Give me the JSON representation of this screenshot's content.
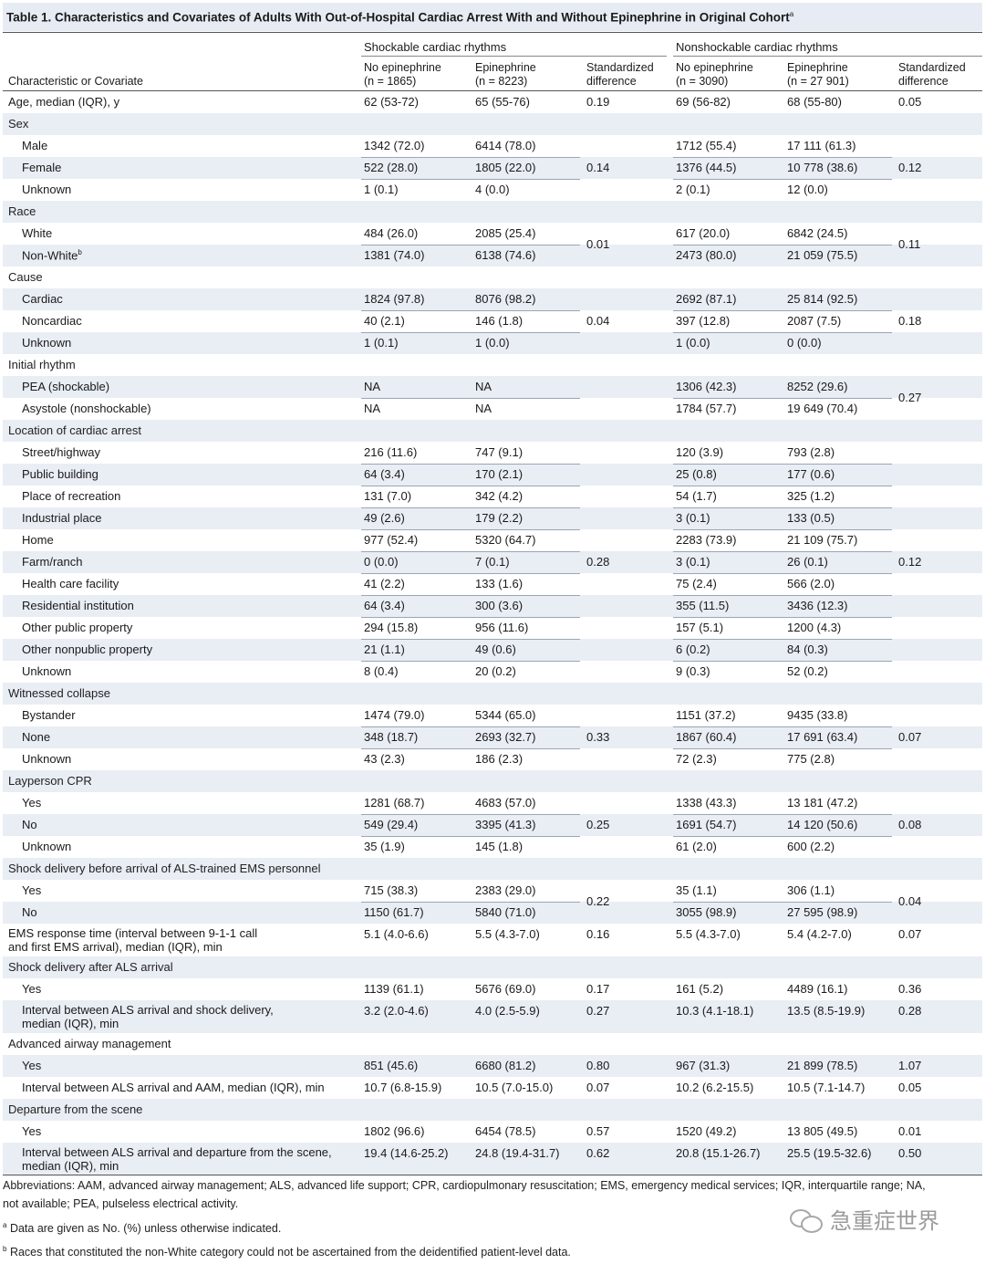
{
  "title": "Table 1. Characteristics and Covariates of Adults With Out-of-Hospital Cardiac Arrest With and Without Epinephrine in Original Cohort",
  "title_sup": "a",
  "header": {
    "group1": "Shockable cardiac rhythms",
    "group2": "Nonshockable cardiac rhythms",
    "characteristic": "Characteristic or Covariate",
    "cols": [
      [
        "No epinephrine",
        "(n = 1865)"
      ],
      [
        "Epinephrine",
        "(n = 8223)"
      ],
      [
        "Standardized",
        "difference"
      ],
      [
        "No epinephrine",
        "(n = 3090)"
      ],
      [
        "Epinephrine",
        "(n = 27 901)"
      ],
      [
        "Standardized",
        "difference"
      ]
    ]
  },
  "rows": [
    {
      "label": "Age, median (IQR), y",
      "s1": "62 (53-72)",
      "s2": "65 (55-76)",
      "sd1": "0.19",
      "n1": "69 (56-82)",
      "n2": "68 (55-80)",
      "sd2": "0.05"
    },
    {
      "label": "Sex",
      "section": true
    },
    {
      "label": "Male",
      "sub": true,
      "s1": "1342 (72.0)",
      "s2": "6414 (78.0)",
      "n1": "1712 (55.4)",
      "n2": "17 111 (61.3)"
    },
    {
      "label": "Female",
      "sub": true,
      "s1": "522 (28.0)",
      "s2": "1805 (22.0)",
      "n1": "1376 (44.5)",
      "n2": "10 778 (38.6)"
    },
    {
      "label": "Unknown",
      "sub": true,
      "s1": "1 (0.1)",
      "s2": "4 (0.0)",
      "n1": "2 (0.1)",
      "n2": "12 (0.0)"
    },
    {
      "label": "Race",
      "section": true
    },
    {
      "label": "White",
      "sub": true,
      "s1": "484 (26.0)",
      "s2": "2085 (25.4)",
      "n1": "617 (20.0)",
      "n2": "6842 (24.5)"
    },
    {
      "label": "Non-White",
      "label_sup": "b",
      "sub": true,
      "s1": "1381 (74.0)",
      "s2": "6138 (74.6)",
      "n1": "2473 (80.0)",
      "n2": "21 059 (75.5)"
    },
    {
      "label": "Cause",
      "section": true
    },
    {
      "label": "Cardiac",
      "sub": true,
      "s1": "1824 (97.8)",
      "s2": "8076 (98.2)",
      "n1": "2692 (87.1)",
      "n2": "25 814 (92.5)"
    },
    {
      "label": "Noncardiac",
      "sub": true,
      "s1": "40 (2.1)",
      "s2": "146 (1.8)",
      "n1": "397 (12.8)",
      "n2": "2087 (7.5)"
    },
    {
      "label": "Unknown",
      "sub": true,
      "s1": "1 (0.1)",
      "s2": "1 (0.0)",
      "n1": "1 (0.0)",
      "n2": "0 (0.0)"
    },
    {
      "label": "Initial rhythm",
      "section": true
    },
    {
      "label": "PEA (shockable)",
      "sub": true,
      "s1": "NA",
      "s2": "NA",
      "n1": "1306 (42.3)",
      "n2": "8252 (29.6)"
    },
    {
      "label": "Asystole (nonshockable)",
      "sub": true,
      "s1": "NA",
      "s2": "NA",
      "n1": "1784 (57.7)",
      "n2": "19 649 (70.4)"
    },
    {
      "label": "Location of cardiac arrest",
      "section": true
    },
    {
      "label": "Street/highway",
      "sub": true,
      "s1": "216 (11.6)",
      "s2": "747 (9.1)",
      "n1": "120 (3.9)",
      "n2": "793 (2.8)"
    },
    {
      "label": "Public building",
      "sub": true,
      "s1": "64 (3.4)",
      "s2": "170 (2.1)",
      "n1": "25 (0.8)",
      "n2": "177 (0.6)"
    },
    {
      "label": "Place of recreation",
      "sub": true,
      "s1": "131 (7.0)",
      "s2": "342 (4.2)",
      "n1": "54 (1.7)",
      "n2": "325 (1.2)"
    },
    {
      "label": "Industrial place",
      "sub": true,
      "s1": "49 (2.6)",
      "s2": "179 (2.2)",
      "n1": "3 (0.1)",
      "n2": "133 (0.5)"
    },
    {
      "label": "Home",
      "sub": true,
      "s1": "977 (52.4)",
      "s2": "5320 (64.7)",
      "n1": "2283 (73.9)",
      "n2": "21 109 (75.7)"
    },
    {
      "label": "Farm/ranch",
      "sub": true,
      "s1": "0 (0.0)",
      "s2": "7 (0.1)",
      "n1": "3 (0.1)",
      "n2": "26 (0.1)"
    },
    {
      "label": "Health care facility",
      "sub": true,
      "s1": "41 (2.2)",
      "s2": "133 (1.6)",
      "n1": "75 (2.4)",
      "n2": "566 (2.0)"
    },
    {
      "label": "Residential institution",
      "sub": true,
      "s1": "64 (3.4)",
      "s2": "300 (3.6)",
      "n1": "355 (11.5)",
      "n2": "3436 (12.3)"
    },
    {
      "label": "Other public property",
      "sub": true,
      "s1": "294 (15.8)",
      "s2": "956 (11.6)",
      "n1": "157 (5.1)",
      "n2": "1200 (4.3)"
    },
    {
      "label": "Other nonpublic property",
      "sub": true,
      "s1": "21 (1.1)",
      "s2": "49 (0.6)",
      "n1": "6 (0.2)",
      "n2": "84 (0.3)"
    },
    {
      "label": "Unknown",
      "sub": true,
      "s1": "8 (0.4)",
      "s2": "20 (0.2)",
      "n1": "9 (0.3)",
      "n2": "52 (0.2)"
    },
    {
      "label": "Witnessed collapse",
      "section": true
    },
    {
      "label": "Bystander",
      "sub": true,
      "s1": "1474 (79.0)",
      "s2": "5344 (65.0)",
      "n1": "1151 (37.2)",
      "n2": "9435 (33.8)"
    },
    {
      "label": "None",
      "sub": true,
      "s1": "348 (18.7)",
      "s2": "2693 (32.7)",
      "n1": "1867 (60.4)",
      "n2": "17 691 (63.4)"
    },
    {
      "label": "Unknown",
      "sub": true,
      "s1": "43 (2.3)",
      "s2": "186 (2.3)",
      "n1": "72 (2.3)",
      "n2": "775 (2.8)"
    },
    {
      "label": "Layperson CPR",
      "section": true
    },
    {
      "label": "Yes",
      "sub": true,
      "s1": "1281 (68.7)",
      "s2": "4683 (57.0)",
      "n1": "1338 (43.3)",
      "n2": "13 181 (47.2)"
    },
    {
      "label": "No",
      "sub": true,
      "s1": "549 (29.4)",
      "s2": "3395 (41.3)",
      "n1": "1691 (54.7)",
      "n2": "14 120 (50.6)"
    },
    {
      "label": "Unknown",
      "sub": true,
      "s1": "35 (1.9)",
      "s2": "145 (1.8)",
      "n1": "61 (2.0)",
      "n2": "600 (2.2)"
    },
    {
      "label": "Shock delivery before arrival of ALS-trained EMS personnel",
      "section": true
    },
    {
      "label": "Yes",
      "sub": true,
      "s1": "715 (38.3)",
      "s2": "2383 (29.0)",
      "n1": "35 (1.1)",
      "n2": "306 (1.1)"
    },
    {
      "label": "No",
      "sub": true,
      "s1": "1150 (61.7)",
      "s2": "5840 (71.0)",
      "n1": "3055 (98.9)",
      "n2": "27 595 (98.9)"
    },
    {
      "label": "EMS response time (interval between 9-1-1 call",
      "label2": "and first EMS arrival), median (IQR), min",
      "two": true,
      "s1": "5.1 (4.0-6.6)",
      "s2": "5.5 (4.3-7.0)",
      "sd1": "0.16",
      "n1": "5.5 (4.3-7.0)",
      "n2": "5.4 (4.2-7.0)",
      "sd2": "0.07"
    },
    {
      "label": "Shock delivery after ALS arrival",
      "section": true
    },
    {
      "label": "Yes",
      "sub": true,
      "s1": "1139 (61.1)",
      "s2": "5676 (69.0)",
      "sd1": "0.17",
      "n1": "161 (5.2)",
      "n2": "4489 (16.1)",
      "sd2": "0.36"
    },
    {
      "label": "Interval between ALS arrival and shock delivery,",
      "label2": "median (IQR), min",
      "sub": true,
      "two": true,
      "s1": "3.2 (2.0-4.6)",
      "s2": "4.0 (2.5-5.9)",
      "sd1": "0.27",
      "n1": "10.3 (4.1-18.1)",
      "n2": "13.5 (8.5-19.9)",
      "sd2": "0.28"
    },
    {
      "label": "Advanced airway management",
      "section": true
    },
    {
      "label": "Yes",
      "sub": true,
      "s1": "851 (45.6)",
      "s2": "6680 (81.2)",
      "sd1": "0.80",
      "n1": "967 (31.3)",
      "n2": "21 899 (78.5)",
      "sd2": "1.07"
    },
    {
      "label": "Interval between ALS arrival and AAM, median (IQR), min",
      "sub": true,
      "s1": "10.7 (6.8-15.9)",
      "s2": "10.5 (7.0-15.0)",
      "sd1": "0.07",
      "n1": "10.2 (6.2-15.5)",
      "n2": "10.5 (7.1-14.7)",
      "sd2": "0.05"
    },
    {
      "label": "Departure from the scene",
      "section": true
    },
    {
      "label": "Yes",
      "sub": true,
      "s1": "1802 (96.6)",
      "s2": "6454 (78.5)",
      "sd1": "0.57",
      "n1": "1520 (49.2)",
      "n2": "13 805 (49.5)",
      "sd2": "0.01"
    },
    {
      "label": "Interval between ALS arrival and departure from the scene,",
      "label2": "median (IQR), min",
      "sub": true,
      "two": true,
      "s1": "19.4 (14.6-25.2)",
      "s2": "24.8 (19.4-31.7)",
      "sd1": "0.62",
      "n1": "20.8 (15.1-26.7)",
      "n2": "25.5 (19.5-32.6)",
      "sd2": "0.50"
    }
  ],
  "merged_sd": [
    {
      "first": 2,
      "last": 4,
      "sd1": "0.14",
      "sd2": "0.12"
    },
    {
      "first": 6,
      "last": 7,
      "sd1": "0.01",
      "sd2": "0.11"
    },
    {
      "first": 9,
      "last": 11,
      "sd1": "0.04",
      "sd2": "0.18"
    },
    {
      "first": 13,
      "last": 14,
      "sd1": "",
      "sd2": "0.27"
    },
    {
      "first": 16,
      "last": 26,
      "sd1": "0.28",
      "sd2": "0.12"
    },
    {
      "first": 28,
      "last": 30,
      "sd1": "0.33",
      "sd2": "0.07"
    },
    {
      "first": 32,
      "last": 34,
      "sd1": "0.25",
      "sd2": "0.08"
    },
    {
      "first": 36,
      "last": 37,
      "sd1": "0.22",
      "sd2": "0.04"
    }
  ],
  "footnotes": {
    "abbrev1": "Abbreviations: AAM, advanced airway management; ALS, advanced life support; CPR, cardiopulmonary resuscitation; EMS, emergency medical services; IQR, interquartile range; NA,",
    "abbrev2": "not available; PEA, pulseless electrical activity.",
    "a_mark": "a",
    "a_text": "Data are given as No. (%) unless otherwise indicated.",
    "b_mark": "b",
    "b_text": "Races that constituted the non-White category could not be ascertained from the deidentified patient-level data."
  },
  "watermark": "急重症世界",
  "colors": {
    "title_bg": "#e7ecf4",
    "stripe": "#e9edf4",
    "rule": "#555555"
  }
}
